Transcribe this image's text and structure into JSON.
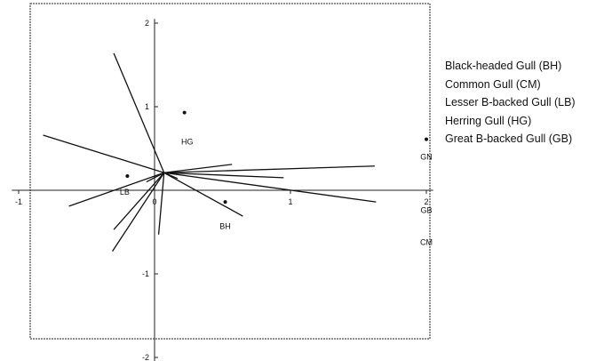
{
  "chart_data": {
    "type": "scatter",
    "subtype": "biplot",
    "title": "",
    "xlabel": "",
    "ylabel": "",
    "xlim": [
      -1.05,
      2.05
    ],
    "ylim": [
      -2.05,
      2.05
    ],
    "x_ticks": [
      {
        "value": -1,
        "label": "-1"
      },
      {
        "value": 0,
        "label": "0"
      },
      {
        "value": 1,
        "label": "1"
      },
      {
        "value": 2,
        "label": "2"
      }
    ],
    "y_ticks": [
      {
        "value": -2,
        "label": "-2"
      },
      {
        "value": -1,
        "label": "-1"
      },
      {
        "value": 1,
        "label": "1"
      },
      {
        "value": 2,
        "label": "2"
      }
    ],
    "grid": false,
    "legend_position": "right",
    "legend": [
      "Black-headed Gull (BH)",
      "Common Gull (CM)",
      "Lesser B-backed Gull (LB)",
      "Herring Gull (HG)",
      "Great B-backed Gull (GB)"
    ],
    "vector_origin": [
      0.07,
      0.21
    ],
    "vectors": [
      {
        "x": 0.57,
        "y": 0.31
      },
      {
        "x": 1.63,
        "y": -0.14
      },
      {
        "x": 0.95,
        "y": 0.15
      },
      {
        "x": 1.62,
        "y": 0.29
      },
      {
        "x": -0.82,
        "y": 0.66
      },
      {
        "x": -0.3,
        "y": 1.64
      },
      {
        "x": -0.63,
        "y": -0.19
      },
      {
        "x": -0.3,
        "y": -0.47
      },
      {
        "x": -0.31,
        "y": -0.73
      },
      {
        "x": 0.03,
        "y": -0.53
      },
      {
        "x": 0.65,
        "y": -0.31
      },
      {
        "x": -0.06,
        "y": 0.1
      },
      {
        "x": 0.17,
        "y": 0.14
      }
    ],
    "points": [
      {
        "x": 0.22,
        "y": 0.93
      },
      {
        "x": -0.2,
        "y": 0.17
      },
      {
        "x": 0.52,
        "y": -0.14
      },
      {
        "x": 2.0,
        "y": 0.61
      }
    ],
    "labels": [
      {
        "text": "HG",
        "x": 0.24,
        "y": 0.58
      },
      {
        "text": "LB",
        "x": -0.22,
        "y": -0.02
      },
      {
        "text": "BH",
        "x": 0.52,
        "y": -0.43
      },
      {
        "text": "GN",
        "x": 2.0,
        "y": 0.4
      },
      {
        "text": "GB",
        "x": 2.0,
        "y": -0.24
      },
      {
        "text": "CM",
        "x": 2.0,
        "y": -0.62
      }
    ]
  }
}
